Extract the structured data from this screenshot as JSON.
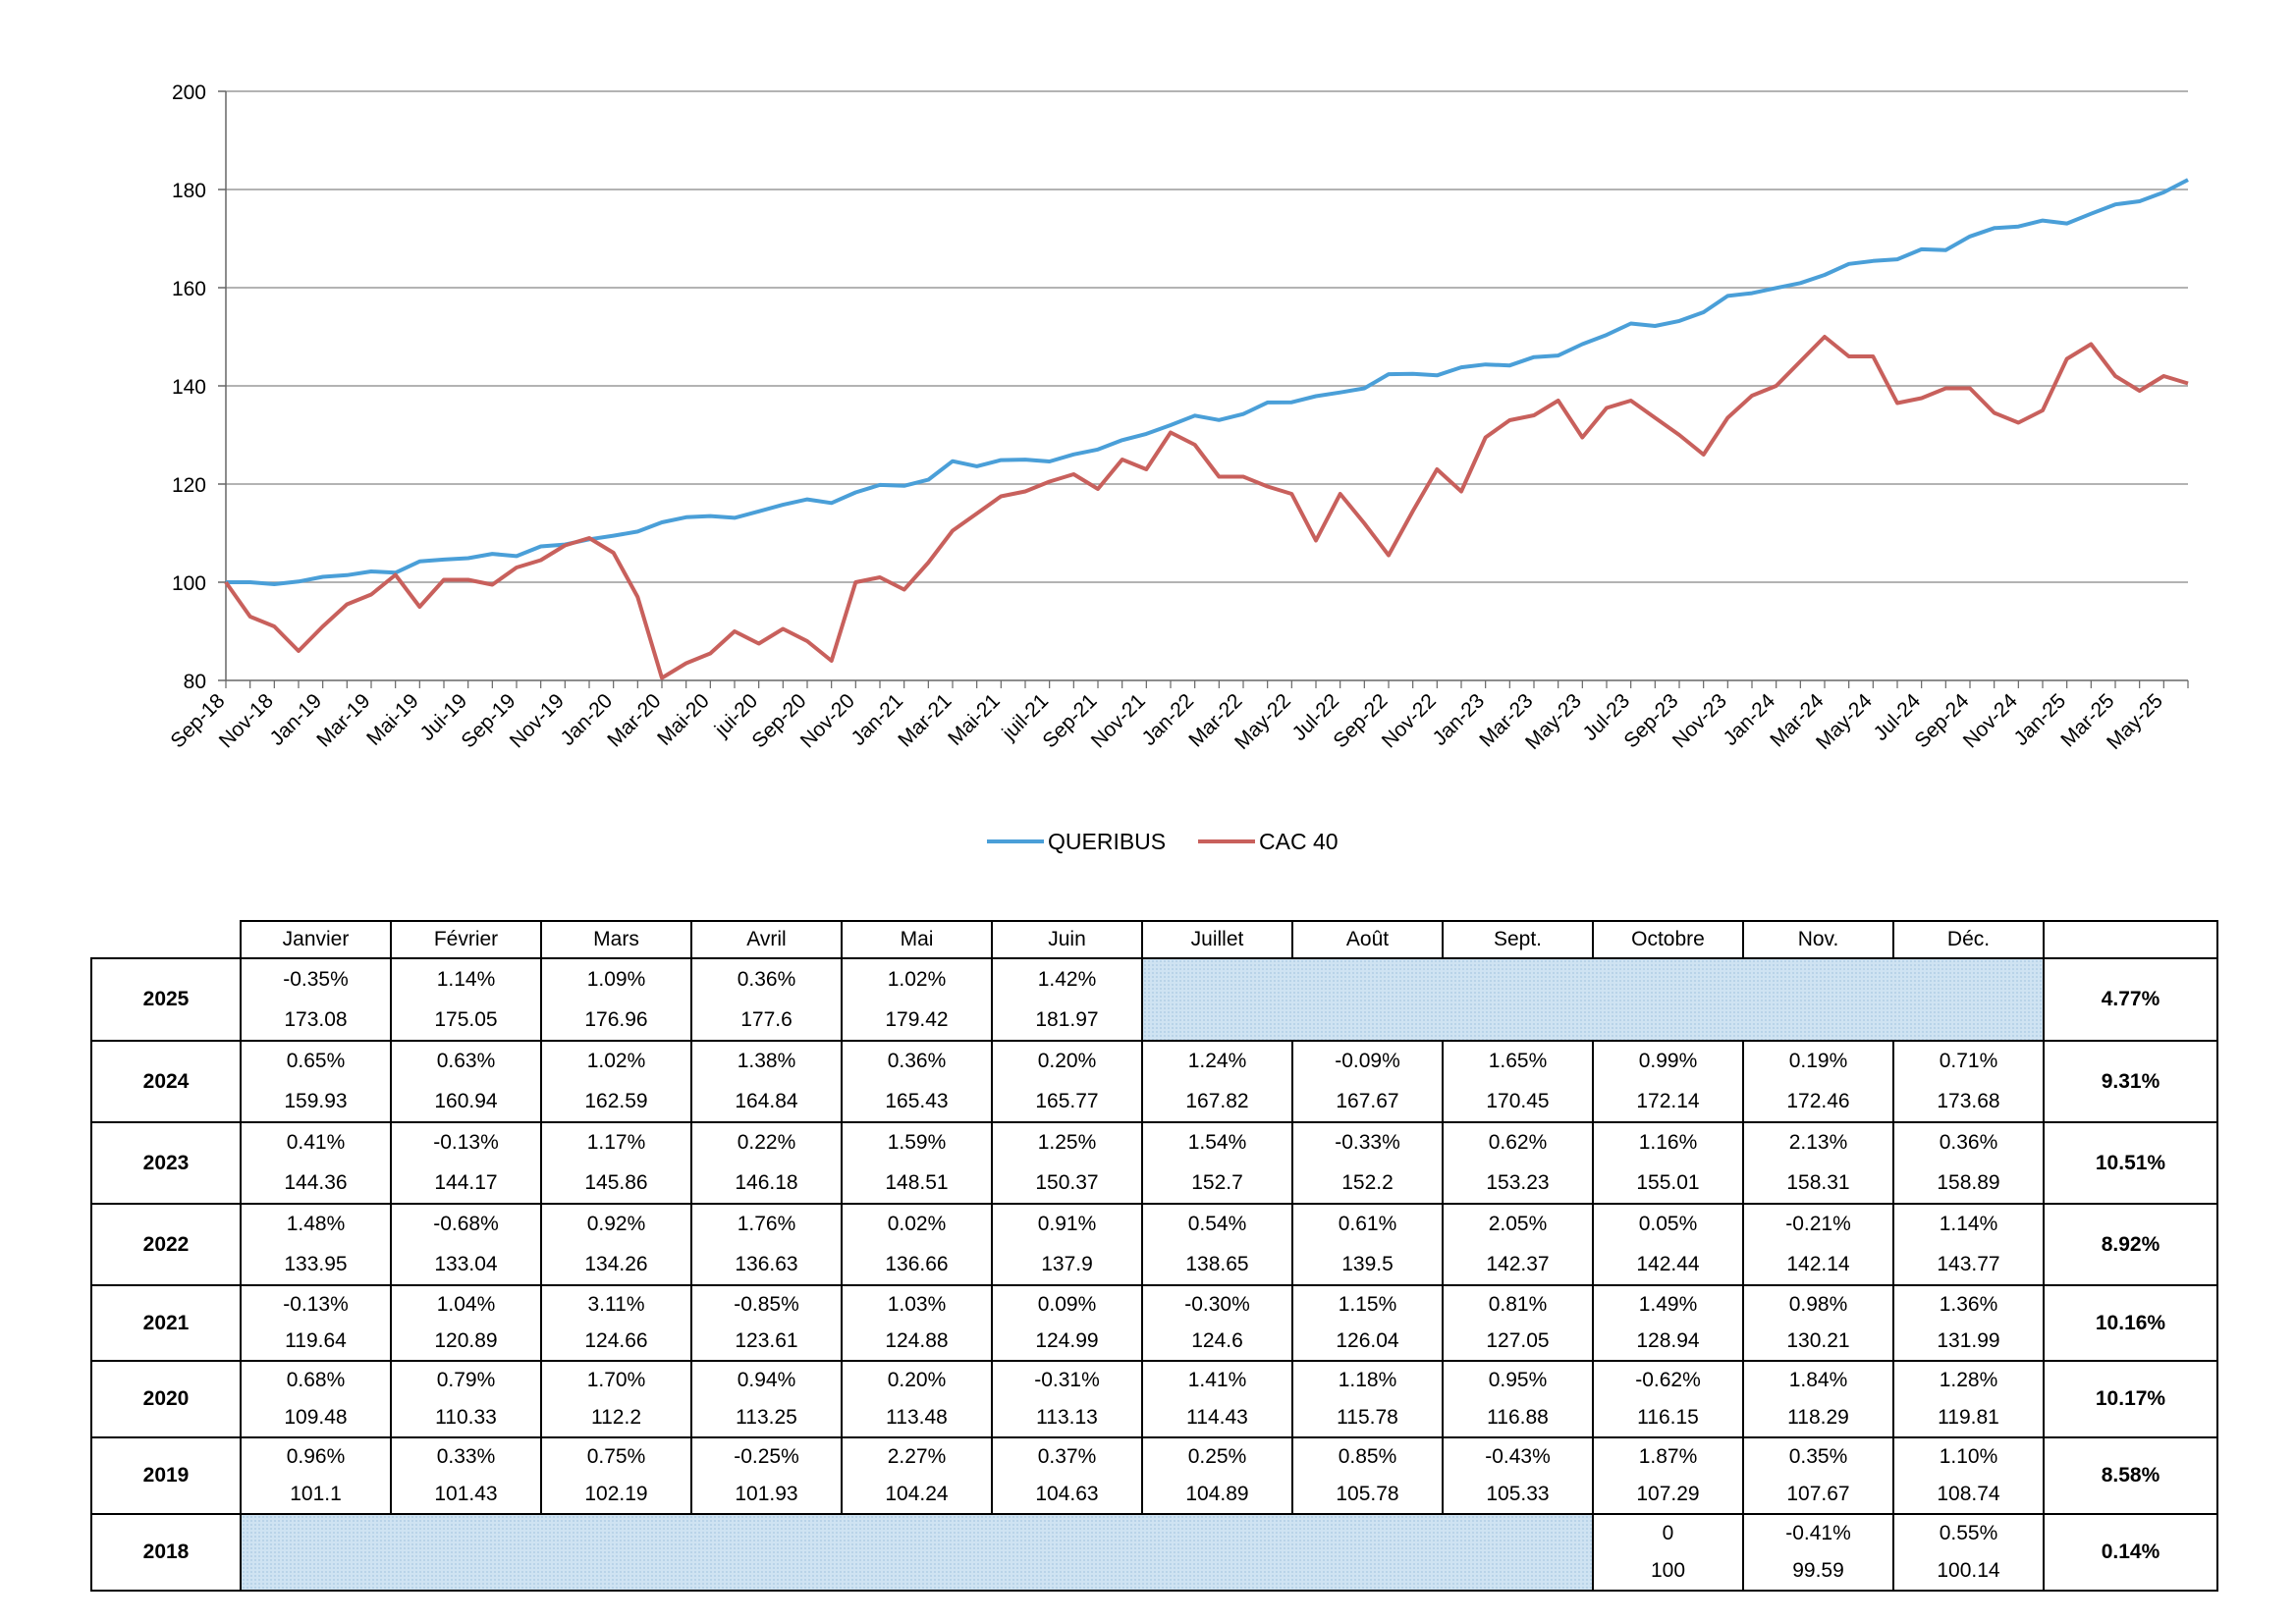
{
  "chart_data": {
    "type": "line",
    "ylim": [
      80,
      200
    ],
    "yticks": [
      80,
      100,
      120,
      140,
      160,
      180,
      200
    ],
    "grid": true,
    "legend": "bottom-center",
    "x_start": "Sep-18",
    "tick_labels": [
      "Sep-18",
      "Nov-18",
      "Jan-19",
      "Mar-19",
      "Mai-19",
      "Jui-19",
      "Sep-19",
      "Nov-19",
      "Jan-20",
      "Mar-20",
      "Mai-20",
      "jui-20",
      "Sep-20",
      "Nov-20",
      "Jan-21",
      "Mar-21",
      "Mai-21",
      "juil-21",
      "Sep-21",
      "Nov-21",
      "Jan-22",
      "Mar-22",
      "May-22",
      "Jul-22",
      "Sep-22",
      "Nov-22",
      "Jan-23",
      "Mar-23",
      "May-23",
      "Jul-23",
      "Sep-23",
      "Nov-23",
      "Jan-24",
      "Mar-24",
      "May-24",
      "Jul-24",
      "Sep-24",
      "Nov-24",
      "Jan-25",
      "Mar-25",
      "May-25"
    ],
    "series": [
      {
        "name": "QUERIBUS",
        "color": "#4a9fd8",
        "values": [
          100,
          100,
          99.59,
          100.14,
          101.1,
          101.43,
          102.19,
          101.93,
          104.24,
          104.63,
          104.89,
          105.78,
          105.33,
          107.29,
          107.67,
          108.74,
          109.48,
          110.33,
          112.2,
          113.25,
          113.48,
          113.13,
          114.43,
          115.78,
          116.88,
          116.15,
          118.29,
          119.81,
          119.64,
          120.89,
          124.66,
          123.61,
          124.88,
          124.99,
          124.6,
          126.04,
          127.05,
          128.94,
          130.21,
          131.99,
          133.95,
          133.04,
          134.26,
          136.63,
          136.66,
          137.9,
          138.65,
          139.5,
          142.37,
          142.44,
          142.14,
          143.77,
          144.36,
          144.17,
          145.86,
          146.18,
          148.51,
          150.37,
          152.7,
          152.2,
          153.23,
          155.01,
          158.31,
          158.89,
          159.93,
          160.94,
          162.59,
          164.84,
          165.43,
          165.77,
          167.82,
          167.67,
          170.45,
          172.14,
          172.46,
          173.68,
          173.08,
          175.05,
          176.96,
          177.6,
          179.42,
          181.97
        ]
      },
      {
        "name": "CAC 40",
        "color": "#c8605c",
        "values": [
          100,
          93,
          91,
          86,
          91,
          95.5,
          97.5,
          101.5,
          95,
          100.5,
          100.5,
          99.5,
          103,
          104.5,
          107.5,
          109,
          106,
          97,
          80.5,
          83.5,
          85.5,
          90,
          87.5,
          90.5,
          88,
          84,
          100,
          101,
          98.5,
          104,
          110.5,
          114,
          117.5,
          118.5,
          120.5,
          122,
          119,
          125,
          123,
          130.5,
          128,
          121.5,
          121.5,
          119.5,
          118,
          108.5,
          118,
          112,
          105.5,
          114.5,
          123,
          118.5,
          129.5,
          133,
          134,
          137,
          129.5,
          135.5,
          137,
          133.5,
          130,
          126,
          133.5,
          138,
          140,
          145,
          150,
          146,
          146,
          136.5,
          137.5,
          139.5,
          139.5,
          134.5,
          132.5,
          135,
          145.5,
          148.5,
          142,
          139,
          142,
          140.5
        ]
      }
    ]
  },
  "table": {
    "months": [
      "Janvier",
      "Février",
      "Mars",
      "Avril",
      "Mai",
      "Juin",
      "Juillet",
      "Août",
      "Sept.",
      "Octobre",
      "Nov.",
      "Déc."
    ],
    "rows": [
      {
        "year": "2025",
        "total": "4.77%",
        "cells": [
          [
            "-0.35%",
            "173.08"
          ],
          [
            "1.14%",
            "175.05"
          ],
          [
            "1.09%",
            "176.96"
          ],
          [
            "0.36%",
            "177.6"
          ],
          [
            "1.02%",
            "179.42"
          ],
          [
            "1.42%",
            "181.97"
          ],
          null,
          null,
          null,
          null,
          null,
          null
        ]
      },
      {
        "year": "2024",
        "total": "9.31%",
        "cells": [
          [
            "0.65%",
            "159.93"
          ],
          [
            "0.63%",
            "160.94"
          ],
          [
            "1.02%",
            "162.59"
          ],
          [
            "1.38%",
            "164.84"
          ],
          [
            "0.36%",
            "165.43"
          ],
          [
            "0.20%",
            "165.77"
          ],
          [
            "1.24%",
            "167.82"
          ],
          [
            "-0.09%",
            "167.67"
          ],
          [
            "1.65%",
            "170.45"
          ],
          [
            "0.99%",
            "172.14"
          ],
          [
            "0.19%",
            "172.46"
          ],
          [
            "0.71%",
            "173.68"
          ]
        ]
      },
      {
        "year": "2023",
        "total": "10.51%",
        "cells": [
          [
            "0.41%",
            "144.36"
          ],
          [
            "-0.13%",
            "144.17"
          ],
          [
            "1.17%",
            "145.86"
          ],
          [
            "0.22%",
            "146.18"
          ],
          [
            "1.59%",
            "148.51"
          ],
          [
            "1.25%",
            "150.37"
          ],
          [
            "1.54%",
            "152.7"
          ],
          [
            "-0.33%",
            "152.2"
          ],
          [
            "0.62%",
            "153.23"
          ],
          [
            "1.16%",
            "155.01"
          ],
          [
            "2.13%",
            "158.31"
          ],
          [
            "0.36%",
            "158.89"
          ]
        ]
      },
      {
        "year": "2022",
        "total": "8.92%",
        "cells": [
          [
            "1.48%",
            "133.95"
          ],
          [
            "-0.68%",
            "133.04"
          ],
          [
            "0.92%",
            "134.26"
          ],
          [
            "1.76%",
            "136.63"
          ],
          [
            "0.02%",
            "136.66"
          ],
          [
            "0.91%",
            "137.9"
          ],
          [
            "0.54%",
            "138.65"
          ],
          [
            "0.61%",
            "139.5"
          ],
          [
            "2.05%",
            "142.37"
          ],
          [
            "0.05%",
            "142.44"
          ],
          [
            "-0.21%",
            "142.14"
          ],
          [
            "1.14%",
            "143.77"
          ]
        ]
      },
      {
        "year": "2021",
        "total": "10.16%",
        "cells": [
          [
            "-0.13%",
            "119.64"
          ],
          [
            "1.04%",
            "120.89"
          ],
          [
            "3.11%",
            "124.66"
          ],
          [
            "-0.85%",
            "123.61"
          ],
          [
            "1.03%",
            "124.88"
          ],
          [
            "0.09%",
            "124.99"
          ],
          [
            "-0.30%",
            "124.6"
          ],
          [
            "1.15%",
            "126.04"
          ],
          [
            "0.81%",
            "127.05"
          ],
          [
            "1.49%",
            "128.94"
          ],
          [
            "0.98%",
            "130.21"
          ],
          [
            "1.36%",
            "131.99"
          ]
        ]
      },
      {
        "year": "2020",
        "total": "10.17%",
        "cells": [
          [
            "0.68%",
            "109.48"
          ],
          [
            "0.79%",
            "110.33"
          ],
          [
            "1.70%",
            "112.2"
          ],
          [
            "0.94%",
            "113.25"
          ],
          [
            "0.20%",
            "113.48"
          ],
          [
            "-0.31%",
            "113.13"
          ],
          [
            "1.41%",
            "114.43"
          ],
          [
            "1.18%",
            "115.78"
          ],
          [
            "0.95%",
            "116.88"
          ],
          [
            "-0.62%",
            "116.15"
          ],
          [
            "1.84%",
            "118.29"
          ],
          [
            "1.28%",
            "119.81"
          ]
        ]
      },
      {
        "year": "2019",
        "total": "8.58%",
        "cells": [
          [
            "0.96%",
            "101.1"
          ],
          [
            "0.33%",
            "101.43"
          ],
          [
            "0.75%",
            "102.19"
          ],
          [
            "-0.25%",
            "101.93"
          ],
          [
            "2.27%",
            "104.24"
          ],
          [
            "0.37%",
            "104.63"
          ],
          [
            "0.25%",
            "104.89"
          ],
          [
            "0.85%",
            "105.78"
          ],
          [
            "-0.43%",
            "105.33"
          ],
          [
            "1.87%",
            "107.29"
          ],
          [
            "0.35%",
            "107.67"
          ],
          [
            "1.10%",
            "108.74"
          ]
        ]
      },
      {
        "year": "2018",
        "total": "0.14%",
        "cells": [
          null,
          null,
          null,
          null,
          null,
          null,
          null,
          null,
          null,
          [
            "0",
            "100"
          ],
          [
            "-0.41%",
            "99.59"
          ],
          [
            "0.55%",
            "100.14"
          ]
        ]
      }
    ]
  }
}
